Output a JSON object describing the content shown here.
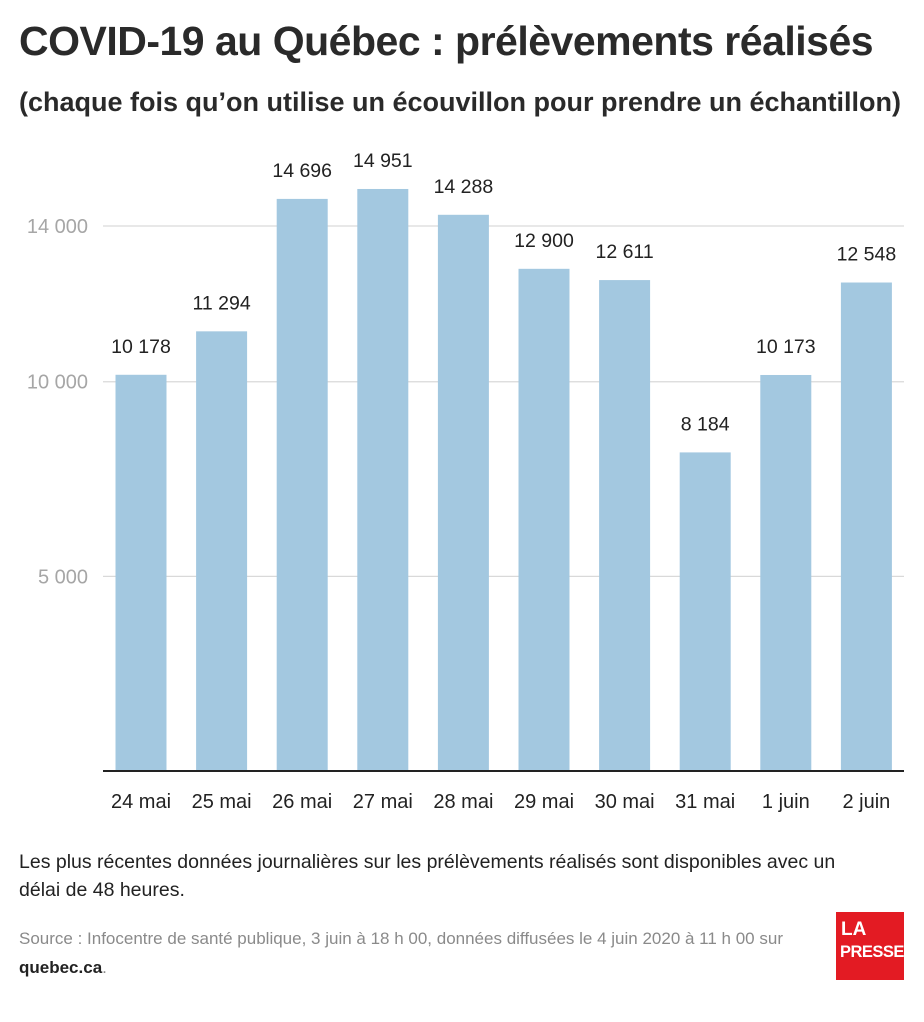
{
  "header": {
    "title": "COVID-19 au Québec : prélèvements réalisés",
    "subtitle": "(chaque fois qu’on utilise un écouvillon pour prendre un échantillon)"
  },
  "chart_data": {
    "type": "bar",
    "categories": [
      "24 mai",
      "25 mai",
      "26 mai",
      "27 mai",
      "28 mai",
      "29 mai",
      "30 mai",
      "31 mai",
      "1 juin",
      "2 juin"
    ],
    "values": [
      10178,
      11294,
      14696,
      14951,
      14288,
      12900,
      12611,
      8184,
      10173,
      12548
    ],
    "value_labels": [
      "10 178",
      "11 294",
      "14 696",
      "14 951",
      "14 288",
      "12 900",
      "12 611",
      "8 184",
      "10 173",
      "12 548"
    ],
    "y_ticks": [
      5000,
      10000,
      14000
    ],
    "y_tick_labels": [
      "5 000",
      "10 000",
      "14 000"
    ],
    "ylim": [
      0,
      15000
    ],
    "grid": true,
    "bar_color": "#a3c8e0",
    "grid_color": "#d9d9d9",
    "tick_label_color": "#a6a6a6"
  },
  "footer": {
    "note": "Les plus récentes données journalières sur les prélèvements réalisés sont disponibles avec un délai de 48 heures.",
    "source_text": "Source : Infocentre de santé publique, 3 juin à 18 h 00, données diffusées le 4 juin 2020 à 11 h 00 sur",
    "source_link": "quebec.ca",
    "source_end": "."
  },
  "logo": {
    "line1": "LA",
    "line2": "PRESSE",
    "color": "#e31b23"
  }
}
